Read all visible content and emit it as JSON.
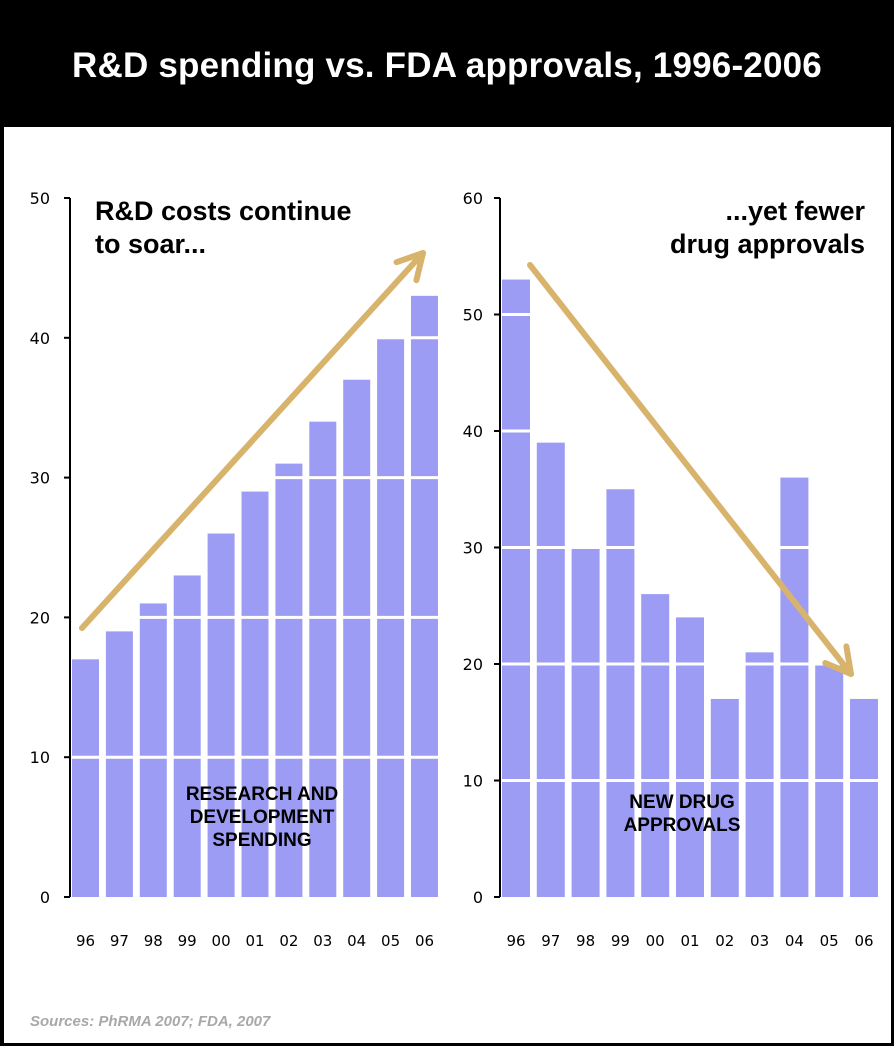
{
  "title": "R&D spending vs. FDA approvals, 1996-2006",
  "source": "Sources: PhRMA 2007; FDA, 2007",
  "colors": {
    "bar": "#9c9cf5",
    "arrow": "#d8b36c",
    "header": "#000000"
  },
  "chart_data": [
    {
      "type": "bar",
      "categories": [
        "96",
        "97",
        "98",
        "99",
        "00",
        "01",
        "02",
        "03",
        "04",
        "05",
        "06"
      ],
      "values": [
        17,
        19,
        21,
        23,
        26,
        29,
        31,
        34,
        37,
        40,
        43
      ],
      "ylim": [
        0,
        50
      ],
      "yticks": [
        "0",
        "10",
        "20",
        "30",
        "40",
        "50"
      ],
      "headline": [
        "R&D costs continue",
        "to soar..."
      ],
      "inner_label": [
        "RESEARCH AND",
        "DEVELOPMENT",
        "SPENDING"
      ],
      "grid": "white lines across bars",
      "annotation": "rising trend arrow"
    },
    {
      "type": "bar",
      "categories": [
        "96",
        "97",
        "98",
        "99",
        "00",
        "01",
        "02",
        "03",
        "04",
        "05",
        "06"
      ],
      "values": [
        53,
        39,
        30,
        35,
        26,
        24,
        17,
        21,
        36,
        20,
        17
      ],
      "ylim": [
        0,
        60
      ],
      "yticks": [
        "0",
        "10",
        "20",
        "30",
        "40",
        "50",
        "60"
      ],
      "headline": [
        "...yet fewer",
        "drug approvals"
      ],
      "inner_label": [
        "NEW DRUG",
        "APPROVALS"
      ],
      "grid": "white lines across bars",
      "annotation": "falling trend arrow"
    }
  ]
}
